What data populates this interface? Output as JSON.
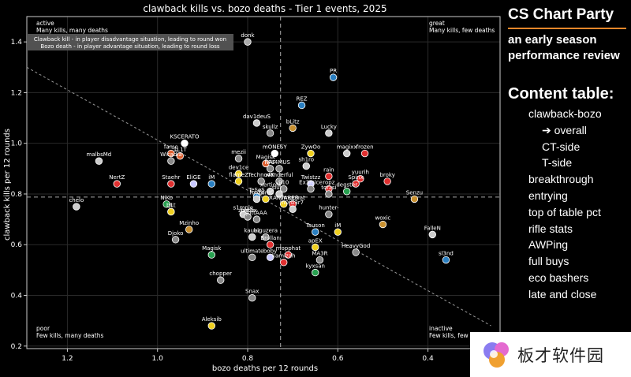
{
  "chart_data": {
    "type": "scatter",
    "title": "clawback kills vs. bozo deaths - Tier 1 events, 2025",
    "xlabel": "bozo deaths per 12 rounds",
    "ylabel": "clawback kills per 12 rounds",
    "xlim": [
      1.29,
      0.24
    ],
    "ylim": [
      0.19,
      1.5
    ],
    "x_reversed": true,
    "xticks": [
      1.2,
      1.0,
      0.8,
      0.6,
      0.4
    ],
    "yticks": [
      0.2,
      0.4,
      0.6,
      0.8,
      1.0,
      1.2,
      1.4
    ],
    "xtick_labels": [
      "1.2",
      "1.0",
      "0.8",
      "0.6",
      "0.4"
    ],
    "ytick_labels": [
      "0.2",
      "0.4",
      "0.6",
      "0.8",
      "1.0",
      "1.2",
      "1.4"
    ],
    "grid": true,
    "mean_lines": {
      "x": 0.727,
      "y": 0.788
    },
    "trend_line": {
      "x": [
        1.29,
        0.26
      ],
      "y": [
        1.3,
        0.28
      ]
    },
    "legend_box": [
      "Clawback kill - in player disadvantage situation, leading to round won",
      "Bozo death - in player advantage situation, leading to round loss"
    ],
    "quadrant_labels": {
      "top_left": {
        "title": "active",
        "desc": "Many kills, many deaths"
      },
      "top_right": {
        "title": "great",
        "desc": "Many kills, few deaths"
      },
      "bottom_left": {
        "title": "poor",
        "desc": "Few kills, many deaths"
      },
      "bottom_right": {
        "title": "inactive",
        "desc": "Few kills, few deaths"
      }
    },
    "points": [
      {
        "name": "donk",
        "x": 0.8,
        "y": 1.4,
        "color": "#aaaaaa"
      },
      {
        "name": "PR",
        "x": 0.61,
        "y": 1.26,
        "color": "#2a7fc1"
      },
      {
        "name": "REZ",
        "x": 0.68,
        "y": 1.15,
        "color": "#2a7fc1"
      },
      {
        "name": "dav1deuS",
        "x": 0.78,
        "y": 1.08,
        "color": "#cccccc"
      },
      {
        "name": "bLitz",
        "x": 0.7,
        "y": 1.06,
        "color": "#c89030"
      },
      {
        "name": "skullz",
        "x": 0.75,
        "y": 1.04,
        "color": "#888888"
      },
      {
        "name": "Lucky",
        "x": 0.62,
        "y": 1.04,
        "color": "#cccccc"
      },
      {
        "name": "KSCERATO",
        "x": 0.94,
        "y": 1.0,
        "color": "#ffffff"
      },
      {
        "name": "fame",
        "x": 0.97,
        "y": 0.96,
        "color": "#e06030"
      },
      {
        "name": "1L1T",
        "x": 0.95,
        "y": 0.95,
        "color": "#e06030"
      },
      {
        "name": "mezii",
        "x": 0.82,
        "y": 0.94,
        "color": "#888888"
      },
      {
        "name": "mONESY",
        "x": 0.74,
        "y": 0.96,
        "color": "#ffffff"
      },
      {
        "name": "ZywOo",
        "x": 0.66,
        "y": 0.96,
        "color": "#f0d020"
      },
      {
        "name": "magixx",
        "x": 0.58,
        "y": 0.96,
        "color": "#cccccc"
      },
      {
        "name": "frozen",
        "x": 0.54,
        "y": 0.96,
        "color": "#e03030"
      },
      {
        "name": "malbsMd",
        "x": 1.13,
        "y": 0.93,
        "color": "#cccccc"
      },
      {
        "name": "Wicadia",
        "x": 0.97,
        "y": 0.93,
        "color": "#888888"
      },
      {
        "name": "Magisk",
        "x": 0.76,
        "y": 0.92,
        "color": "#e06030"
      },
      {
        "name": "NAF",
        "x": 0.75,
        "y": 0.9,
        "color": "#888888"
      },
      {
        "name": "FL4MUS",
        "x": 0.73,
        "y": 0.9,
        "color": "#888888"
      },
      {
        "name": "sh1ro",
        "x": 0.67,
        "y": 0.91,
        "color": "#cccccc"
      },
      {
        "name": "dev1ce",
        "x": 0.82,
        "y": 0.88,
        "color": "#f0d020"
      },
      {
        "name": "rain",
        "x": 0.62,
        "y": 0.87,
        "color": "#e03030"
      },
      {
        "name": "flameZ",
        "x": 0.82,
        "y": 0.85,
        "color": "#f0d020"
      },
      {
        "name": "Techno4K",
        "x": 0.77,
        "y": 0.85,
        "color": "#888888"
      },
      {
        "name": "w0nderful",
        "x": 0.73,
        "y": 0.85,
        "color": "#888888"
      },
      {
        "name": "Twistzz",
        "x": 0.66,
        "y": 0.84,
        "color": "#c8c8ff"
      },
      {
        "name": "yuurih",
        "x": 0.55,
        "y": 0.86,
        "color": "#e03030"
      },
      {
        "name": "broky",
        "x": 0.49,
        "y": 0.85,
        "color": "#e03030"
      },
      {
        "name": "NertZ",
        "x": 1.09,
        "y": 0.84,
        "color": "#e03030"
      },
      {
        "name": "Staehr",
        "x": 0.97,
        "y": 0.84,
        "color": "#e03030"
      },
      {
        "name": "EliGE",
        "x": 0.92,
        "y": 0.84,
        "color": "#c8c8ff"
      },
      {
        "name": "iM",
        "x": 0.88,
        "y": 0.84,
        "color": "#2a7fc1"
      },
      {
        "name": "xertioN",
        "x": 0.75,
        "y": 0.81,
        "color": "#cccccc"
      },
      {
        "name": "siuhy",
        "x": 0.73,
        "y": 0.8,
        "color": "#cccccc"
      },
      {
        "name": "910",
        "x": 0.72,
        "y": 0.82,
        "color": "#888888"
      },
      {
        "name": "Ex3rcice",
        "x": 0.66,
        "y": 0.82,
        "color": "#888888"
      },
      {
        "name": "ropz",
        "x": 0.62,
        "y": 0.82,
        "color": "#e03030"
      },
      {
        "name": "Spinx",
        "x": 0.56,
        "y": 0.84,
        "color": "#e03030"
      },
      {
        "name": "torzsi",
        "x": 0.62,
        "y": 0.8,
        "color": "#888888"
      },
      {
        "name": "degster",
        "x": 0.58,
        "y": 0.81,
        "color": "#28a050"
      },
      {
        "name": "Senzu",
        "x": 0.43,
        "y": 0.78,
        "color": "#c89030"
      },
      {
        "name": "chelo",
        "x": 1.18,
        "y": 0.75,
        "color": "#cccccc"
      },
      {
        "name": "NiKo",
        "x": 0.98,
        "y": 0.76,
        "color": "#28a050"
      },
      {
        "name": "b1t",
        "x": 0.97,
        "y": 0.73,
        "color": "#f0d020"
      },
      {
        "name": "jL",
        "x": 0.97,
        "y": 0.73,
        "color": "#f0d020"
      },
      {
        "name": "TeSeS",
        "x": 0.78,
        "y": 0.79,
        "color": "#2a7fc1"
      },
      {
        "name": "hAdji",
        "x": 0.78,
        "y": 0.78,
        "color": "#cccccc"
      },
      {
        "name": "ZonIC",
        "x": 0.76,
        "y": 0.78,
        "color": "#f0d020"
      },
      {
        "name": "XANTARES",
        "x": 0.72,
        "y": 0.76,
        "color": "#f0d020"
      },
      {
        "name": "Jimpphat",
        "x": 0.7,
        "y": 0.76,
        "color": "#e03030"
      },
      {
        "name": "n0rb3r7",
        "x": 0.7,
        "y": 0.74,
        "color": "#cccccc"
      },
      {
        "name": "s1mple",
        "x": 0.81,
        "y": 0.72,
        "color": "#cccccc"
      },
      {
        "name": "zont1x",
        "x": 0.8,
        "y": 0.71,
        "color": "#e06030"
      },
      {
        "name": "Jame",
        "x": 0.8,
        "y": 0.71,
        "color": "#888888"
      },
      {
        "name": "jottAAA",
        "x": 0.78,
        "y": 0.7,
        "color": "#888888"
      },
      {
        "name": "hunter-",
        "x": 0.62,
        "y": 0.72,
        "color": "#888888"
      },
      {
        "name": "woxic",
        "x": 0.5,
        "y": 0.68,
        "color": "#c89030"
      },
      {
        "name": "Mzinho",
        "x": 0.93,
        "y": 0.66,
        "color": "#c89030"
      },
      {
        "name": "Tauson",
        "x": 0.65,
        "y": 0.65,
        "color": "#2a7fc1"
      },
      {
        "name": "iM",
        "x": 0.6,
        "y": 0.65,
        "color": "#f0d020"
      },
      {
        "name": "FalleN",
        "x": 0.39,
        "y": 0.64,
        "color": "#cccccc"
      },
      {
        "name": "Djoko",
        "x": 0.96,
        "y": 0.62,
        "color": "#888888"
      },
      {
        "name": "kauez",
        "x": 0.79,
        "y": 0.63,
        "color": "#cccccc"
      },
      {
        "name": "biguzera",
        "x": 0.76,
        "y": 0.63,
        "color": "#888888"
      },
      {
        "name": "Brollan",
        "x": 0.75,
        "y": 0.6,
        "color": "#e03030"
      },
      {
        "name": "apEX",
        "x": 0.65,
        "y": 0.59,
        "color": "#f0d020"
      },
      {
        "name": "HeavyGod",
        "x": 0.56,
        "y": 0.57,
        "color": "#888888"
      },
      {
        "name": "Magisk",
        "x": 0.88,
        "y": 0.56,
        "color": "#28a050"
      },
      {
        "name": "ultimate",
        "x": 0.79,
        "y": 0.55,
        "color": "#888888"
      },
      {
        "name": "boby",
        "x": 0.75,
        "y": 0.55,
        "color": "#c8c8ff"
      },
      {
        "name": "mopphat",
        "x": 0.71,
        "y": 0.56,
        "color": "#e03030"
      },
      {
        "name": "MA3R",
        "x": 0.64,
        "y": 0.54,
        "color": "#888888"
      },
      {
        "name": "sl3nd",
        "x": 0.36,
        "y": 0.54,
        "color": "#2a7fc1"
      },
      {
        "name": "kamizah",
        "x": 0.72,
        "y": 0.53,
        "color": "#e03030"
      },
      {
        "name": "kyxsan",
        "x": 0.65,
        "y": 0.49,
        "color": "#28a050"
      },
      {
        "name": "chopper",
        "x": 0.86,
        "y": 0.46,
        "color": "#888888"
      },
      {
        "name": "Snax",
        "x": 0.79,
        "y": 0.39,
        "color": "#888888"
      },
      {
        "name": "Aleksib",
        "x": 0.88,
        "y": 0.28,
        "color": "#f0d020"
      }
    ]
  },
  "sidebar": {
    "brand": "CS Chart Party",
    "accent_color": "#e8872a",
    "subtitle_line1": "an early season",
    "subtitle_line2": "performance review",
    "toc_heading": "Content table:",
    "toc_items": [
      {
        "label": "clawback-bozo",
        "level": "l0"
      },
      {
        "label": "➔ overall",
        "level": "l1"
      },
      {
        "label": "CT-side",
        "level": "l1"
      },
      {
        "label": "T-side",
        "level": "l1"
      },
      {
        "label": "breakthrough",
        "level": "l2"
      },
      {
        "label": "entrying",
        "level": "l2"
      },
      {
        "label": "top of table pct",
        "level": "l2"
      },
      {
        "label": "rifle stats",
        "level": "l2"
      },
      {
        "label": "AWPing",
        "level": "l2"
      },
      {
        "label": "full buys",
        "level": "l2"
      },
      {
        "label": "eco bashers",
        "level": "l2"
      },
      {
        "label": "late and close",
        "level": "l2"
      }
    ]
  },
  "watermark": {
    "text": "板才软件园"
  }
}
